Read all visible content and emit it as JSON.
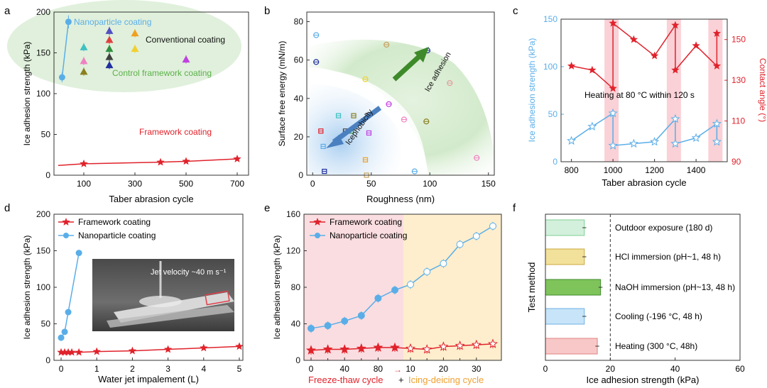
{
  "colors": {
    "red": "#e0222b",
    "blue": "#5aaee8",
    "green_text": "#5cb04a",
    "orange_text": "#f0a030",
    "pink_band": "#f7c6cc",
    "orange_band": "#fde7b8",
    "green_zone": "#d6ebd0"
  },
  "chart_data": [
    {
      "panel": "a",
      "type": "scatter",
      "xlabel": "Taber abrasion cycle",
      "ylabel": "Ice adhesion strength (kPa)",
      "xlim": [
        0,
        700
      ],
      "ylim": [
        0,
        200
      ],
      "xticks": [
        100,
        300,
        500,
        700
      ],
      "yticks": [
        0,
        50,
        100,
        150,
        200
      ],
      "series": [
        {
          "name": "Nanoparticle coating",
          "x": [
            15,
            40
          ],
          "y": [
            120,
            188
          ],
          "err": [
            6,
            8
          ]
        },
        {
          "name": "Framework coating",
          "x": [
            0,
            100,
            400,
            500,
            700
          ],
          "y": [
            12,
            14,
            16,
            17,
            20
          ]
        }
      ],
      "conventional_points": [
        {
          "x": 100,
          "y": 157,
          "color": "#40c0c0"
        },
        {
          "x": 100,
          "y": 140,
          "color": "#f080c0"
        },
        {
          "x": 100,
          "y": 127,
          "color": "#8a8020"
        },
        {
          "x": 200,
          "y": 177,
          "color": "#5050c0"
        },
        {
          "x": 200,
          "y": 166,
          "color": "#e04040"
        },
        {
          "x": 200,
          "y": 155,
          "color": "#309040"
        },
        {
          "x": 200,
          "y": 145,
          "color": "#404040"
        },
        {
          "x": 200,
          "y": 135,
          "color": "#2030a0"
        },
        {
          "x": 300,
          "y": 174,
          "color": "#f0a020"
        },
        {
          "x": 300,
          "y": 155,
          "color": "#f0d030"
        },
        {
          "x": 500,
          "y": 142,
          "color": "#c040e0"
        }
      ],
      "annotations": {
        "nano": "Nanoparticle coating",
        "conventional": "Conventional coating",
        "control": "Control framework coating",
        "framework": "Framework coating"
      }
    },
    {
      "panel": "b",
      "type": "scatter",
      "xlabel": "Roughness (nm)",
      "ylabel": "Surface free energy (mN/m)",
      "xlim": [
        -5,
        155
      ],
      "ylim": [
        0,
        85
      ],
      "xticks": [
        0,
        50,
        100,
        150
      ],
      "yticks": [
        0,
        20,
        40,
        60,
        80
      ],
      "circles": [
        {
          "x": 3,
          "y": 73,
          "color": "#5aaee8"
        },
        {
          "x": 3,
          "y": 59,
          "color": "#2030a0"
        },
        {
          "x": 45,
          "y": 50,
          "color": "#f0d030"
        },
        {
          "x": 63,
          "y": 68,
          "color": "#c8a060"
        },
        {
          "x": 98,
          "y": 65,
          "color": "#2030a0"
        },
        {
          "x": 117,
          "y": 48,
          "color": "#e0a0a0"
        },
        {
          "x": 65,
          "y": 37,
          "color": "#c040e0"
        },
        {
          "x": 78,
          "y": 29,
          "color": "#f080c0"
        },
        {
          "x": 97,
          "y": 28,
          "color": "#8a8020"
        },
        {
          "x": 87,
          "y": 2,
          "color": "#5aaee8"
        },
        {
          "x": 140,
          "y": 9,
          "color": "#f080c0"
        }
      ],
      "squares": [
        {
          "x": 7,
          "y": 23,
          "color": "#e0222b"
        },
        {
          "x": 9,
          "y": 15,
          "color": "#5aaee8"
        },
        {
          "x": 10,
          "y": 2,
          "color": "#2030a0"
        },
        {
          "x": 22,
          "y": 31,
          "color": "#40c0c0"
        },
        {
          "x": 28,
          "y": 23,
          "color": "#404040"
        },
        {
          "x": 35,
          "y": 31,
          "color": "#8a8020"
        },
        {
          "x": 33,
          "y": 23,
          "color": "#309040"
        },
        {
          "x": 47,
          "y": 31,
          "color": "#606060"
        },
        {
          "x": 48,
          "y": 22,
          "color": "#c040e0"
        },
        {
          "x": 45,
          "y": 8,
          "color": "#f0a020"
        },
        {
          "x": 46,
          "y": 0,
          "color": "#c8a060"
        }
      ],
      "annotations": {
        "ice_adhesion": "Ice adhesion",
        "icephobicity": "Icephobicity"
      }
    },
    {
      "panel": "c",
      "type": "line",
      "xlabel": "Taber abrasion cycle",
      "ylabel": "Ice adhesion strength (kPa)",
      "y2label": "Contact angle (°)",
      "xlim": [
        750,
        1550
      ],
      "ylim": [
        0,
        150
      ],
      "y2lim": [
        90,
        160
      ],
      "xticks": [
        800,
        1000,
        1200,
        1400
      ],
      "yticks": [
        0,
        50,
        100,
        150
      ],
      "y2ticks": [
        90,
        110,
        130,
        150
      ],
      "ice": {
        "x": [
          800,
          900,
          1000,
          1000,
          1100,
          1200,
          1300,
          1300,
          1400,
          1500,
          1500
        ],
        "y": [
          22,
          37,
          51,
          17,
          19,
          21,
          45,
          19,
          25,
          40,
          21
        ]
      },
      "angle": {
        "x": [
          800,
          900,
          1000,
          1000,
          1100,
          1200,
          1300,
          1300,
          1400,
          1500,
          1500
        ],
        "y": [
          137,
          135,
          126,
          158,
          150,
          142,
          157,
          135,
          147,
          137,
          153
        ]
      },
      "heating_bands": [
        1000,
        1300,
        1500
      ],
      "annotation": "Heating at 80 °C within 120 s"
    },
    {
      "panel": "d",
      "type": "line",
      "xlabel": "Water jet impalement (L)",
      "ylabel": "Ice adhesion strength (kPa)",
      "xlim": [
        -0.2,
        5.1
      ],
      "ylim": [
        0,
        200
      ],
      "xticks": [
        0,
        1,
        2,
        3,
        4,
        5
      ],
      "yticks": [
        0,
        50,
        100,
        150,
        200
      ],
      "series": [
        {
          "name": "Framework coating",
          "x": [
            0,
            0.1,
            0.2,
            0.3,
            0.5,
            1,
            2,
            3,
            4,
            5
          ],
          "y": [
            11,
            11,
            11,
            11,
            11,
            12,
            13,
            15,
            17,
            19
          ]
        },
        {
          "name": "Nanoparticle coating",
          "x": [
            0,
            0.1,
            0.2,
            0.5
          ],
          "y": [
            31,
            39,
            66,
            147
          ]
        }
      ],
      "inset_label": "Jet velocity ~40 m s⁻¹"
    },
    {
      "panel": "e",
      "type": "line",
      "xlabel_left": "Freeze-thaw cycle",
      "xlabel_plus": "+",
      "xlabel_right": "Icing-deicing cycle",
      "ylabel": "Ice adhesion strength (kPa)",
      "ylim": [
        0,
        160
      ],
      "yticks": [
        0,
        40,
        80,
        120,
        160
      ],
      "xticks_ft": [
        0,
        40,
        80
      ],
      "xticks_id": [
        10,
        20,
        30
      ],
      "xticks_ft_extra": [
        20,
        60
      ],
      "xticks_id_extra": [
        15,
        25
      ],
      "arrow": "→",
      "series": [
        {
          "name": "Framework coating",
          "freeze_thaw": {
            "x": [
              0,
              20,
              40,
              60,
              80,
              100
            ],
            "y": [
              11,
              12,
              12,
              13,
              14,
              14
            ]
          },
          "icing_deicing": {
            "x": [
              10,
              15,
              20,
              25,
              30,
              35
            ],
            "y": [
              13,
              12,
              15,
              16,
              17,
              18
            ]
          }
        },
        {
          "name": "Nanoparticle coating",
          "freeze_thaw": {
            "x": [
              0,
              20,
              40,
              60,
              80,
              100
            ],
            "y": [
              35,
              38,
              43,
              49,
              68,
              77
            ]
          },
          "icing_deicing": {
            "x": [
              10,
              15,
              20,
              25,
              30,
              35
            ],
            "y": [
              83,
              97,
              106,
              127,
              136,
              147
            ]
          }
        }
      ]
    },
    {
      "panel": "f",
      "type": "bar",
      "xlabel": "Ice adhesion strength (kPa)",
      "ylabel": "Test method",
      "xlim": [
        0,
        60
      ],
      "xticks": [
        0,
        20,
        40,
        60
      ],
      "reference_line": 20,
      "categories": [
        "Outdoor exposure (180 d)",
        "HCl immersion (pH~1, 48 h)",
        "NaOH immersion (pH~13, 48 h)",
        "Cooling (-196 °C, 48 h)",
        "Heating (300 °C, 48h)"
      ],
      "values": [
        12,
        12,
        17,
        12,
        16
      ],
      "fills": [
        "#d3f0dc",
        "#f2e19a",
        "#7fc45a",
        "#c7e4f8",
        "#f8c8c8"
      ],
      "strokes": [
        "#7fcf93",
        "#c9a940",
        "#3f8a2c",
        "#6fb2e4",
        "#e08080"
      ]
    }
  ],
  "panel_labels": [
    "a",
    "b",
    "c",
    "d",
    "e",
    "f"
  ]
}
